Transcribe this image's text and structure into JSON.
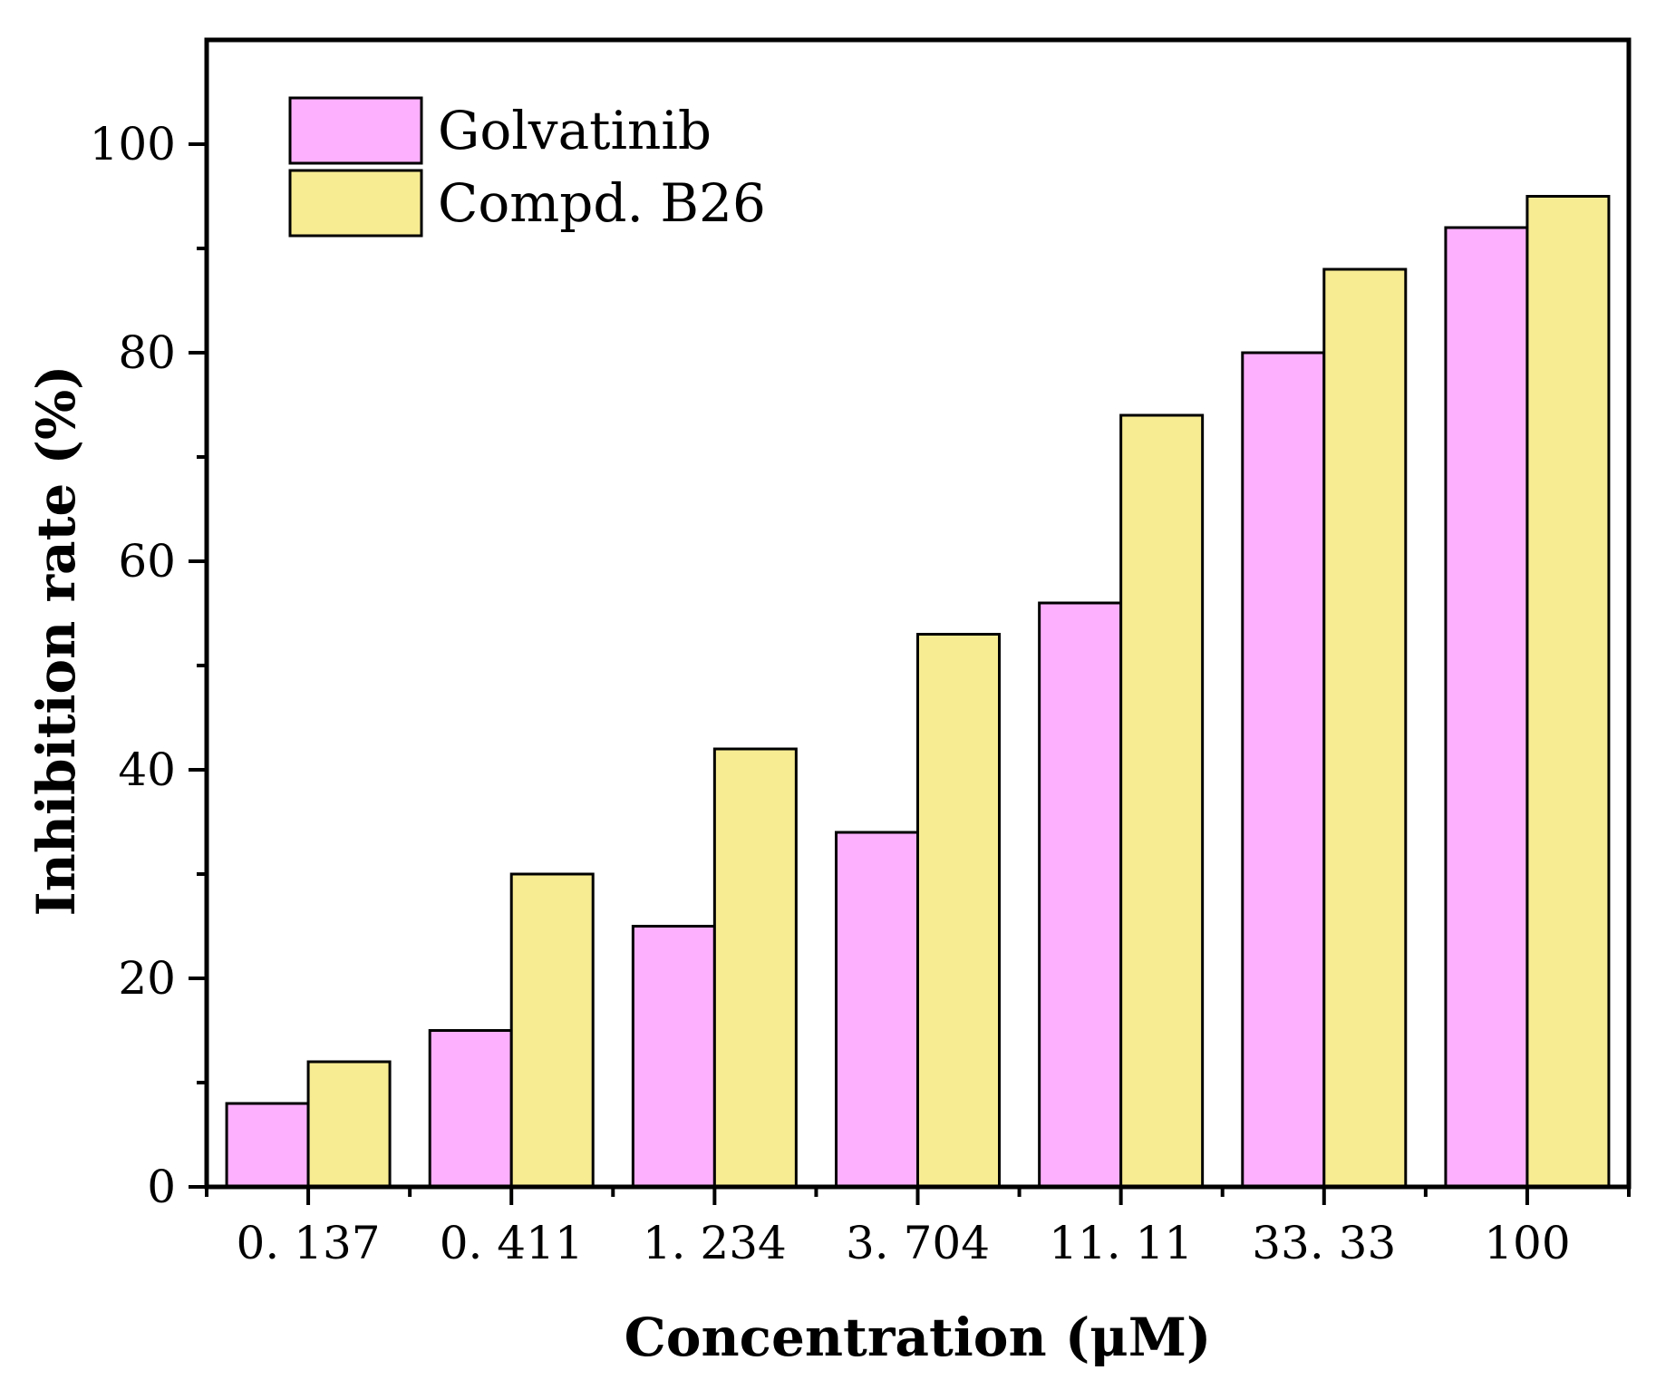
{
  "chart_data": {
    "type": "bar",
    "categories": [
      "0. 137",
      "0. 411",
      "1. 234",
      "3. 704",
      "11. 11",
      "33. 33",
      "100"
    ],
    "series": [
      {
        "name": "Golvatinib",
        "color": "#fdb0fd",
        "values": [
          8,
          15,
          25,
          34,
          56,
          80,
          92
        ]
      },
      {
        "name": "Compd. B26",
        "color": "#f8ec93",
        "values": [
          12,
          30,
          42,
          53,
          74,
          88,
          95
        ]
      }
    ],
    "xlabel": "Concentration (μM)",
    "ylabel": "Inhibition rate (%)",
    "ylim": [
      0,
      110
    ],
    "yticks": [
      "0",
      "20",
      "40",
      "60",
      "80",
      "100"
    ],
    "grid": false,
    "legend": "top-left"
  }
}
